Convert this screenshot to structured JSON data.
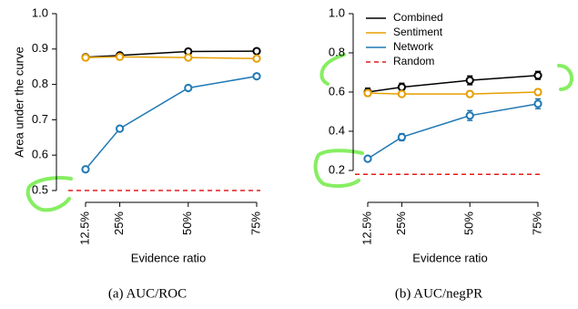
{
  "chart_data": [
    {
      "type": "line",
      "subtitle": "(a) AUC/ROC",
      "xlabel": "Evidence ratio",
      "ylabel": "Area under the curve",
      "x": [
        12.5,
        25,
        50,
        75
      ],
      "xlim": [
        12.5,
        75
      ],
      "xticks": [
        {
          "value": 12.5,
          "label": "12.5%"
        },
        {
          "value": 25,
          "label": "25%"
        },
        {
          "value": 50,
          "label": "50%"
        },
        {
          "value": 75,
          "label": "75%"
        }
      ],
      "ylim": [
        0.5,
        1.0
      ],
      "yticks": [
        0.5,
        0.6,
        0.7,
        0.8,
        0.9,
        {
          "value": 1.0,
          "label": "1.0"
        }
      ],
      "series": [
        {
          "name": "Combined",
          "color": "#000000",
          "values": [
            0.877,
            0.882,
            0.893,
            0.894
          ]
        },
        {
          "name": "Sentiment",
          "color": "#e69f00",
          "values": [
            0.876,
            0.878,
            0.876,
            0.873
          ]
        },
        {
          "name": "Network",
          "color": "#1f78b4",
          "values": [
            0.56,
            0.675,
            0.79,
            0.823
          ]
        },
        {
          "name": "Random",
          "color": "#e41a1c",
          "dashed": true,
          "value": 0.5
        }
      ]
    },
    {
      "type": "line",
      "subtitle": "(b) AUC/negPR",
      "xlabel": "Evidence ratio",
      "x": [
        12.5,
        25,
        50,
        75
      ],
      "xlim": [
        12.5,
        75
      ],
      "xticks": [
        {
          "value": 12.5,
          "label": "12.5%"
        },
        {
          "value": 25,
          "label": "25%"
        },
        {
          "value": 50,
          "label": "50%"
        },
        {
          "value": 75,
          "label": "75%"
        }
      ],
      "ylim": [
        0.2,
        1.0
      ],
      "yticks": [
        0.2,
        0.4,
        0.6,
        0.8,
        {
          "value": 1.0,
          "label": "1.0"
        }
      ],
      "legend": "top-left",
      "series": [
        {
          "name": "Combined",
          "color": "#000000",
          "values": [
            0.6,
            0.625,
            0.66,
            0.685
          ],
          "errors": [
            0.02,
            0.02,
            0.022,
            0.02
          ]
        },
        {
          "name": "Sentiment",
          "color": "#e69f00",
          "values": [
            0.595,
            0.59,
            0.59,
            0.6
          ],
          "errors": [
            0.012,
            0.012,
            0.015,
            0.015
          ]
        },
        {
          "name": "Network",
          "color": "#1f78b4",
          "values": [
            0.26,
            0.37,
            0.48,
            0.54
          ],
          "errors": [
            0.012,
            0.018,
            0.025,
            0.025
          ]
        },
        {
          "name": "Random",
          "color": "#e41a1c",
          "dashed": true,
          "value": 0.18
        }
      ]
    }
  ]
}
